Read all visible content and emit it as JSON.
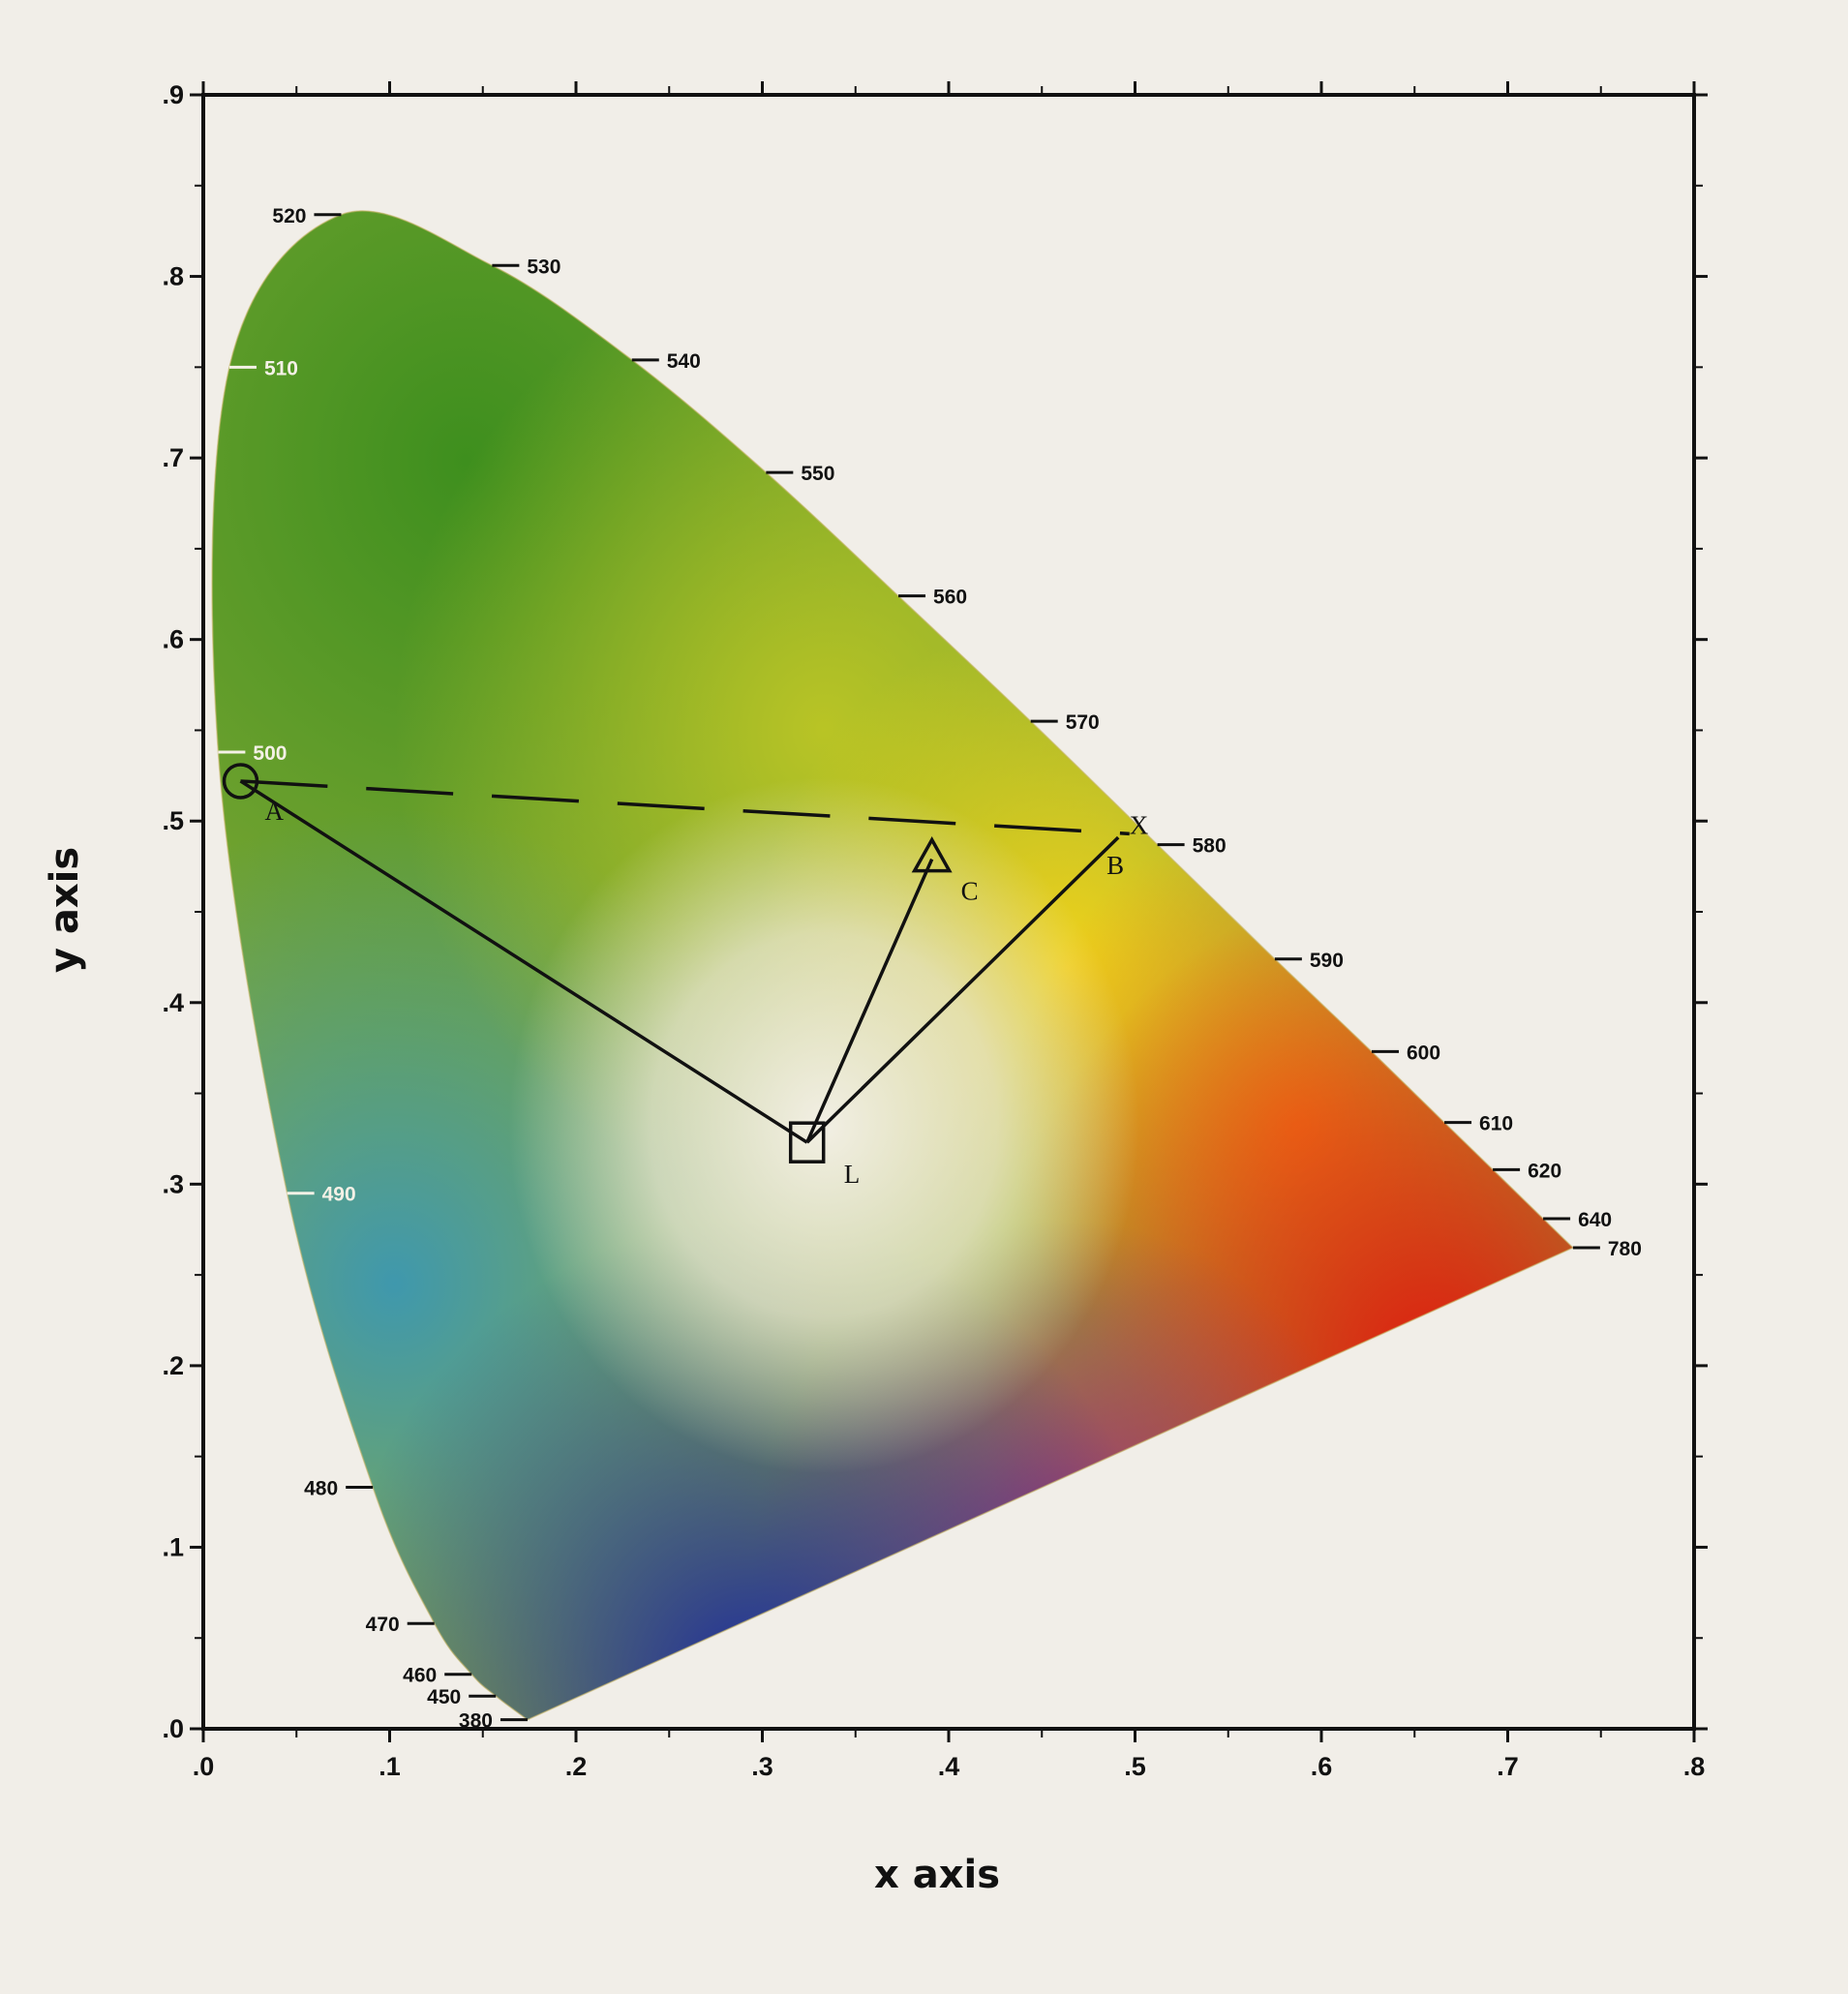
{
  "chart_data": {
    "type": "scatter",
    "title": "",
    "xlabel": "x axis",
    "ylabel": "y axis",
    "xlim": [
      0,
      0.8
    ],
    "ylim": [
      0,
      0.9
    ],
    "x_ticks": [
      ".0",
      ".1",
      ".2",
      ".3",
      ".4",
      ".5",
      ".6",
      ".7",
      ".8"
    ],
    "y_ticks": [
      ".0",
      ".1",
      ".2",
      ".3",
      ".4",
      ".5",
      ".6",
      ".7",
      ".8",
      ".9"
    ],
    "grid": false,
    "spectral_locus": [
      {
        "label": "380",
        "x": 0.174,
        "y": 0.005
      },
      {
        "label": "450",
        "x": 0.157,
        "y": 0.018
      },
      {
        "label": "460",
        "x": 0.144,
        "y": 0.03
      },
      {
        "label": "470",
        "x": 0.124,
        "y": 0.058
      },
      {
        "label": "480",
        "x": 0.091,
        "y": 0.133
      },
      {
        "label": "490",
        "x": 0.045,
        "y": 0.295
      },
      {
        "label": "500",
        "x": 0.008,
        "y": 0.538
      },
      {
        "label": "510",
        "x": 0.014,
        "y": 0.75
      },
      {
        "label": "520",
        "x": 0.074,
        "y": 0.834
      },
      {
        "label": "530",
        "x": 0.155,
        "y": 0.806
      },
      {
        "label": "540",
        "x": 0.23,
        "y": 0.754
      },
      {
        "label": "550",
        "x": 0.302,
        "y": 0.692
      },
      {
        "label": "560",
        "x": 0.373,
        "y": 0.624
      },
      {
        "label": "570",
        "x": 0.444,
        "y": 0.555
      },
      {
        "label": "580",
        "x": 0.512,
        "y": 0.487
      },
      {
        "label": "590",
        "x": 0.575,
        "y": 0.424
      },
      {
        "label": "600",
        "x": 0.627,
        "y": 0.373
      },
      {
        "label": "610",
        "x": 0.666,
        "y": 0.334
      },
      {
        "label": "620",
        "x": 0.692,
        "y": 0.308
      },
      {
        "label": "640",
        "x": 0.719,
        "y": 0.281
      },
      {
        "label": "780",
        "x": 0.735,
        "y": 0.265
      }
    ],
    "points": [
      {
        "label": "A",
        "x": 0.02,
        "y": 0.522,
        "marker": "circle"
      },
      {
        "label": "B",
        "x": 0.491,
        "y": 0.491,
        "marker": "none"
      },
      {
        "label": "C",
        "x": 0.391,
        "y": 0.479,
        "marker": "triangle"
      },
      {
        "label": "L",
        "x": 0.324,
        "y": 0.323,
        "marker": "square"
      },
      {
        "label": "X",
        "x": 0.497,
        "y": 0.493,
        "marker": "none"
      }
    ],
    "solid_lines": [
      {
        "from": "A",
        "to": "L"
      },
      {
        "from": "B",
        "to": "L"
      },
      {
        "from": "C",
        "to": "L"
      }
    ],
    "dashed_lines": [
      {
        "from": "A",
        "to": "X"
      }
    ]
  }
}
